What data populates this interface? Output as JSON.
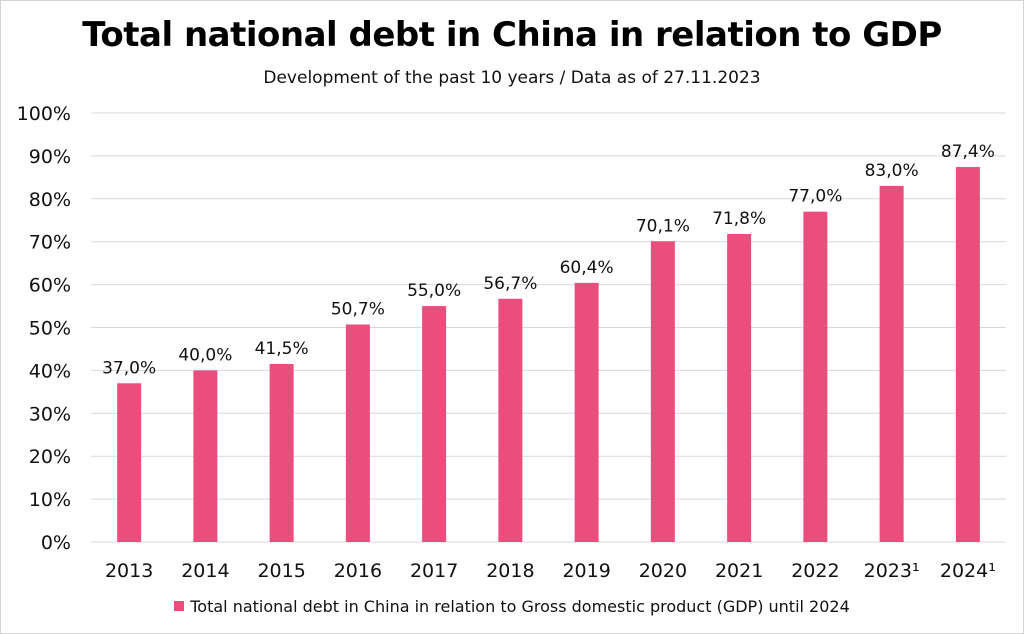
{
  "chart_data": {
    "type": "bar",
    "title": "Total national debt in China in relation to GDP",
    "subtitle": "Development of the past 10 years / Data as of 27.11.2023",
    "categories": [
      "2013",
      "2014",
      "2015",
      "2016",
      "2017",
      "2018",
      "2019",
      "2020",
      "2021",
      "2022",
      "2023¹",
      "2024¹"
    ],
    "series": [
      {
        "name": "Total national debt in China in relation to Gross domestic product (GDP) until 2024",
        "values": [
          37.0,
          40.0,
          41.5,
          50.7,
          55.0,
          56.7,
          60.4,
          70.1,
          71.8,
          77.0,
          83.0,
          87.4
        ],
        "labels": [
          "37,0%",
          "40,0%",
          "41,5%",
          "50,7%",
          "55,0%",
          "56,7%",
          "60,4%",
          "70,1%",
          "71,8%",
          "77,0%",
          "83,0%",
          "87,4%"
        ]
      }
    ],
    "yticks": [
      "0%",
      "10%",
      "20%",
      "30%",
      "40%",
      "50%",
      "60%",
      "70%",
      "80%",
      "90%",
      "100%"
    ],
    "ylim": [
      0,
      100
    ],
    "grid": true,
    "legend_position": "bottom",
    "colors": {
      "bar": "#ea4e7d",
      "grid": "#d9d9d9",
      "text": "#111111"
    }
  }
}
